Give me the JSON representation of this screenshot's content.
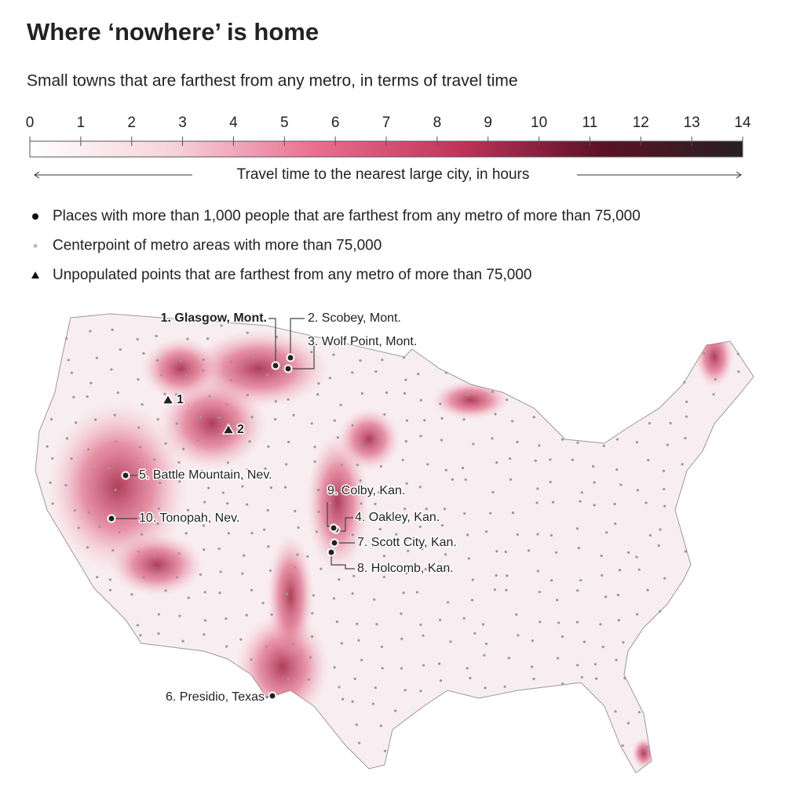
{
  "header": {
    "title": "Where ‘nowhere’ is home",
    "subtitle": "Small towns that are farthest from any metro, in terms of travel time"
  },
  "legend_scale": {
    "ticks": [
      0,
      1,
      2,
      3,
      4,
      5,
      6,
      7,
      8,
      9,
      10,
      11,
      12,
      13,
      14
    ],
    "label": "Travel time to the nearest large city, in hours",
    "colors": [
      "#ffffff",
      "#f7d3dc",
      "#ea6f8f",
      "#c0355a",
      "#5e1128",
      "#262022"
    ]
  },
  "legend": [
    {
      "symbol": "circle",
      "label": "Places with more than 1,000 people that are farthest from any metro of more than 75,000"
    },
    {
      "symbol": "dot",
      "label": "Centerpoint of metro areas with more than 75,000"
    },
    {
      "symbol": "triangle",
      "label": "Unpopulated points that are farthest from any metro of more than 75,000"
    }
  ],
  "places": [
    {
      "label": "1. Glasgow, Mont.",
      "bold": true
    },
    {
      "label": "2. Scobey, Mont.",
      "bold": false
    },
    {
      "label": "3. Wolf Point, Mont.",
      "bold": false
    },
    {
      "label": "4. Oakley, Kan.",
      "bold": false
    },
    {
      "label": "5. Battle Mountain, Nev.",
      "bold": false
    },
    {
      "label": "6. Presidio, Texas",
      "bold": false
    },
    {
      "label": "7. Scott City, Kan.",
      "bold": false
    },
    {
      "label": "8. Holcomb, Kan.",
      "bold": false
    },
    {
      "label": "9. Colby, Kan.",
      "bold": false
    },
    {
      "label": "10. Tonopah, Nev.",
      "bold": false
    }
  ],
  "unpopulated_points": [
    "1",
    "2"
  ]
}
